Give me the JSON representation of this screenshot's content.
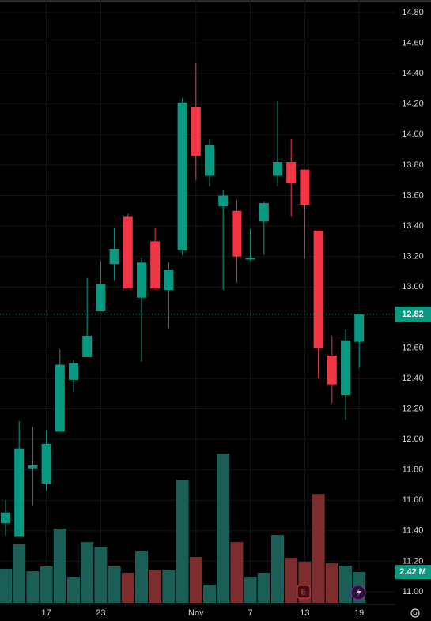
{
  "chart_data": {
    "type": "candlestick",
    "categories": [
      null,
      null,
      null,
      "17",
      null,
      null,
      null,
      "23",
      null,
      null,
      null,
      null,
      null,
      null,
      "Nov",
      null,
      null,
      null,
      "7",
      null,
      null,
      null,
      "13",
      null,
      null,
      null,
      "19"
    ],
    "open": [
      11.45,
      11.36,
      11.81,
      11.71,
      12.05,
      12.39,
      12.54,
      12.84,
      13.15,
      13.46,
      12.93,
      13.3,
      12.98,
      13.24,
      14.18,
      13.73,
      13.53,
      13.5,
      13.18,
      13.43,
      13.73,
      13.82,
      13.77,
      13.37,
      12.55,
      12.29,
      12.64
    ],
    "high": [
      11.6,
      12.12,
      12.08,
      12.06,
      12.59,
      12.52,
      13.06,
      13.17,
      13.39,
      13.48,
      13.19,
      13.39,
      13.16,
      14.24,
      14.47,
      13.97,
      13.64,
      13.57,
      13.38,
      13.56,
      14.22,
      13.97,
      13.77,
      13.37,
      12.68,
      12.72,
      12.82
    ],
    "low": [
      11.37,
      11.36,
      11.57,
      11.66,
      12.05,
      12.31,
      12.54,
      12.84,
      13.04,
      12.99,
      12.51,
      12.98,
      12.73,
      13.21,
      13.7,
      13.66,
      12.98,
      13.03,
      13.17,
      13.21,
      13.66,
      13.46,
      13.19,
      12.4,
      12.24,
      12.13,
      12.47
    ],
    "close": [
      11.52,
      11.94,
      11.83,
      11.97,
      12.49,
      12.5,
      12.68,
      13.02,
      13.25,
      12.99,
      13.16,
      12.99,
      13.11,
      14.21,
      13.86,
      13.93,
      13.6,
      13.2,
      13.19,
      13.55,
      13.82,
      13.68,
      13.54,
      12.6,
      12.36,
      12.65,
      12.82
    ],
    "volume": [
      2.67,
      4.6,
      2.48,
      2.86,
      5.84,
      2.05,
      4.78,
      4.41,
      2.86,
      2.36,
      4.04,
      2.61,
      2.55,
      9.69,
      3.6,
      1.43,
      11.74,
      4.78,
      2.05,
      2.36,
      5.34,
      3.54,
      3.23,
      8.57,
      3.1,
      2.92,
      2.42
    ],
    "volume_ylim": [
      0,
      12
    ],
    "up_color": "#089981",
    "down_color": "#f23645",
    "up_volume_color": "#1b5e56",
    "down_volume_color": "#7e2d2e",
    "ylim": [
      11.0,
      14.8
    ],
    "yticks": [
      {
        "value": 11.0,
        "label": "11.00"
      },
      {
        "value": 11.2,
        "label": "11.20"
      },
      {
        "value": 11.4,
        "label": "11.40"
      },
      {
        "value": 11.6,
        "label": "11.60"
      },
      {
        "value": 11.8,
        "label": "11.80"
      },
      {
        "value": 12.0,
        "label": "12.00"
      },
      {
        "value": 12.2,
        "label": "12.20"
      },
      {
        "value": 12.4,
        "label": "12.40"
      },
      {
        "value": 12.6,
        "label": "12.60"
      },
      {
        "value": 12.8,
        "label": "12.80"
      },
      {
        "value": 13.0,
        "label": "13.00"
      },
      {
        "value": 13.2,
        "label": "13.20"
      },
      {
        "value": 13.4,
        "label": "13.40"
      },
      {
        "value": 13.6,
        "label": "13.60"
      },
      {
        "value": 13.8,
        "label": "13.80"
      },
      {
        "value": 14.0,
        "label": "14.00"
      },
      {
        "value": 14.2,
        "label": "14.20"
      },
      {
        "value": 14.4,
        "label": "14.40"
      },
      {
        "value": 14.6,
        "label": "14.60"
      },
      {
        "value": 14.8,
        "label": "14.80"
      }
    ],
    "price_tag": 12.82,
    "volume_tag": {
      "value": 2.42,
      "label": "2.42 M"
    },
    "grid": true
  }
}
